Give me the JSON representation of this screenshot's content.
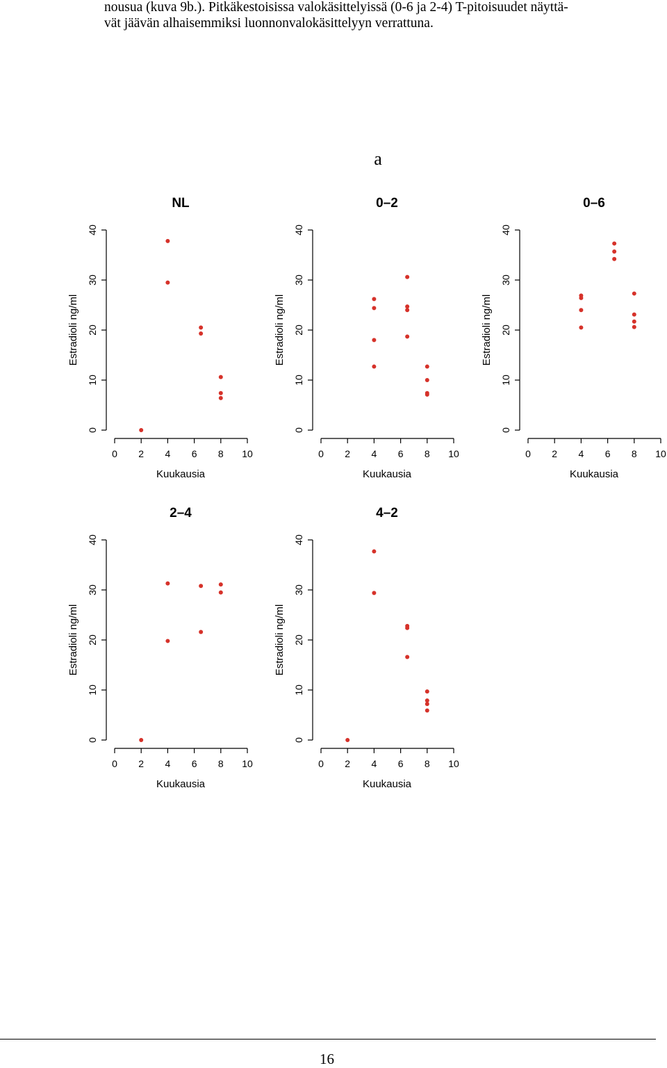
{
  "document": {
    "lines": [
      "nousua (kuva 9b.). Pitkäkestoisissa valokäsittelyissä (0-6 ja 2-4) T-pitoisuudet näyttä-",
      "vät jäävän alhaisemmiksi luonnonvalokäsittelyyn verrattuna."
    ],
    "figure_label": "a",
    "page_number": "16"
  },
  "colors": {
    "point": "#d6322a",
    "axis": "#000000",
    "text": "#000000"
  },
  "chart_data": [
    {
      "type": "scatter",
      "title": "NL",
      "xlabel": "Kuukausia",
      "ylabel": "Estradioli ng/ml",
      "xlim": [
        0,
        10
      ],
      "ylim": [
        0,
        40
      ],
      "xticks": [
        0,
        2,
        4,
        6,
        8,
        10
      ],
      "yticks": [
        0,
        10,
        20,
        30,
        40
      ],
      "grid": false,
      "points": [
        [
          2,
          0
        ],
        [
          4,
          37.8
        ],
        [
          4,
          29.5
        ],
        [
          6.5,
          20.5
        ],
        [
          6.5,
          19.3
        ],
        [
          8,
          10.6
        ],
        [
          8,
          7.4
        ],
        [
          8,
          6.4
        ]
      ]
    },
    {
      "type": "scatter",
      "title": "0–2",
      "xlabel": "Kuukausia",
      "ylabel": "Estradioli ng/ml",
      "xlim": [
        0,
        10
      ],
      "ylim": [
        0,
        40
      ],
      "xticks": [
        0,
        2,
        4,
        6,
        8,
        10
      ],
      "yticks": [
        0,
        10,
        20,
        30,
        40
      ],
      "grid": false,
      "points": [
        [
          4,
          26.2
        ],
        [
          4,
          24.4
        ],
        [
          4,
          18
        ],
        [
          4,
          12.7
        ],
        [
          6.5,
          30.6
        ],
        [
          6.5,
          24.7
        ],
        [
          6.5,
          24
        ],
        [
          6.5,
          18.7
        ],
        [
          8,
          12.7
        ],
        [
          8,
          10
        ],
        [
          8,
          7.4
        ],
        [
          8,
          7.1
        ]
      ]
    },
    {
      "type": "scatter",
      "title": "0–6",
      "xlabel": "Kuukausia",
      "ylabel": "Estradioli ng/ml",
      "xlim": [
        0,
        10
      ],
      "ylim": [
        0,
        40
      ],
      "xticks": [
        0,
        2,
        4,
        6,
        8,
        10
      ],
      "yticks": [
        0,
        10,
        20,
        30,
        40
      ],
      "grid": false,
      "points": [
        [
          4,
          26.9
        ],
        [
          4,
          26.4
        ],
        [
          4,
          24
        ],
        [
          4,
          20.5
        ],
        [
          6.5,
          37.3
        ],
        [
          6.5,
          35.7
        ],
        [
          6.5,
          34.2
        ],
        [
          8,
          27.3
        ],
        [
          8,
          23.1
        ],
        [
          8,
          21.7
        ],
        [
          8,
          20.6
        ]
      ]
    },
    {
      "type": "scatter",
      "title": "2–4",
      "xlabel": "Kuukausia",
      "ylabel": "Estradioli ng/ml",
      "xlim": [
        0,
        10
      ],
      "ylim": [
        0,
        40
      ],
      "xticks": [
        0,
        2,
        4,
        6,
        8,
        10
      ],
      "yticks": [
        0,
        10,
        20,
        30,
        40
      ],
      "grid": false,
      "points": [
        [
          2,
          0
        ],
        [
          4,
          31.3
        ],
        [
          4,
          19.8
        ],
        [
          6.5,
          30.8
        ],
        [
          6.5,
          21.6
        ],
        [
          8,
          31.1
        ],
        [
          8,
          29.5
        ]
      ]
    },
    {
      "type": "scatter",
      "title": "4–2",
      "xlabel": "Kuukausia",
      "ylabel": "Estradioli ng/ml",
      "xlim": [
        0,
        10
      ],
      "ylim": [
        0,
        40
      ],
      "xticks": [
        0,
        2,
        4,
        6,
        8,
        10
      ],
      "yticks": [
        0,
        10,
        20,
        30,
        40
      ],
      "grid": false,
      "points": [
        [
          2,
          0
        ],
        [
          4,
          37.7
        ],
        [
          4,
          29.4
        ],
        [
          6.5,
          22.8
        ],
        [
          6.5,
          22.4
        ],
        [
          6.5,
          16.6
        ],
        [
          8,
          9.7
        ],
        [
          8,
          7.9
        ],
        [
          8,
          7.2
        ],
        [
          8,
          5.9
        ]
      ]
    }
  ]
}
